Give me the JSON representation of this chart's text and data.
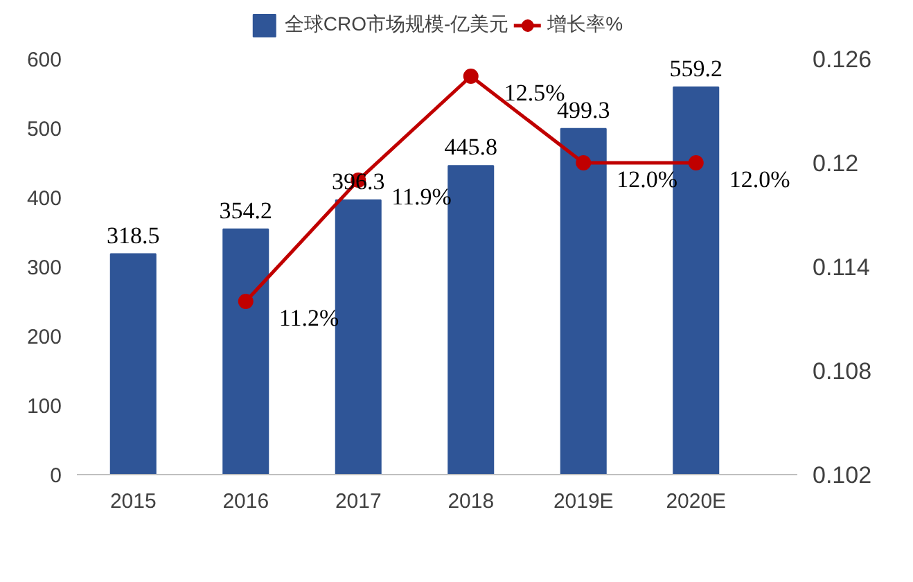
{
  "chart_data": {
    "type": "bar",
    "categories": [
      "2015",
      "2016",
      "2017",
      "2018",
      "2019E",
      "2020E"
    ],
    "series": [
      {
        "name": "全球CRO市场规模-亿美元",
        "color": "#2f5597",
        "values": [
          318.5,
          354.2,
          396.3,
          445.8,
          499.3,
          559.2
        ],
        "value_labels": [
          "318.5",
          "354.2",
          "396.3",
          "445.8",
          "499.3",
          "559.2"
        ]
      },
      {
        "name": "增长率%",
        "type": "line",
        "axis": "y2",
        "color": "#c00000",
        "marker": "circle",
        "values": [
          null,
          0.112,
          0.119,
          0.125,
          0.12,
          0.12
        ],
        "value_labels": [
          null,
          "11.2%",
          "11.9%",
          "12.5%",
          "12.0%",
          "12.0%"
        ]
      }
    ],
    "ylim": [
      0,
      600
    ],
    "yticks": [
      0,
      100,
      200,
      300,
      400,
      500,
      600
    ],
    "y2lim": [
      0.102,
      0.126
    ],
    "y2ticks": [
      0.102,
      0.108,
      0.114,
      0.12,
      0.126
    ],
    "legend": "top"
  }
}
